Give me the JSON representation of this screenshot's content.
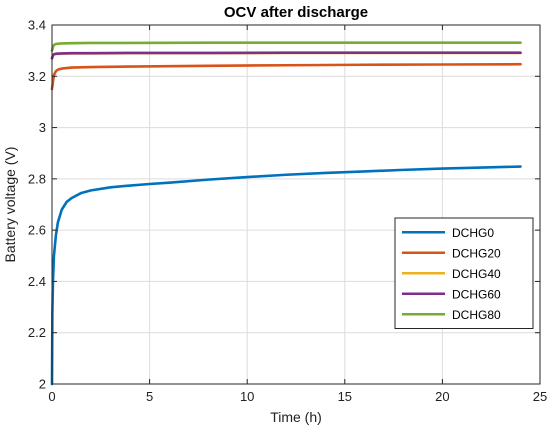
{
  "chart_data": {
    "type": "line",
    "title": "OCV after discharge",
    "xlabel": "Time (h)",
    "ylabel": "Battery voltage (V)",
    "xlim": [
      0,
      25
    ],
    "ylim": [
      2,
      3.4
    ],
    "xticks": [
      0,
      5,
      10,
      15,
      20,
      25
    ],
    "yticks": [
      2,
      2.2,
      2.4,
      2.6,
      2.8,
      3,
      3.2,
      3.4
    ],
    "xtick_labels": [
      "0",
      "5",
      "10",
      "15",
      "20",
      "25"
    ],
    "ytick_labels": [
      "2",
      "2.2",
      "2.4",
      "2.6",
      "2.8",
      "3",
      "3.2",
      "3.4"
    ],
    "grid": true,
    "legend_position": "center-right",
    "series": [
      {
        "name": "DCHG0",
        "color": "#0072BD",
        "x": [
          0,
          0.02,
          0.05,
          0.1,
          0.2,
          0.3,
          0.5,
          0.75,
          1,
          1.5,
          2,
          3,
          4,
          5,
          6,
          8,
          10,
          12,
          14,
          16,
          18,
          20,
          22,
          24
        ],
        "y": [
          2.0,
          2.28,
          2.4,
          2.5,
          2.58,
          2.63,
          2.68,
          2.71,
          2.725,
          2.745,
          2.755,
          2.767,
          2.774,
          2.78,
          2.785,
          2.797,
          2.807,
          2.816,
          2.823,
          2.829,
          2.835,
          2.84,
          2.844,
          2.848
        ]
      },
      {
        "name": "DCHG20",
        "color": "#D95319",
        "x": [
          0,
          0.05,
          0.1,
          0.2,
          0.3,
          0.5,
          1,
          2,
          4,
          8,
          12,
          16,
          20,
          24
        ],
        "y": [
          3.15,
          3.18,
          3.205,
          3.22,
          3.226,
          3.23,
          3.234,
          3.236,
          3.238,
          3.241,
          3.243,
          3.245,
          3.246,
          3.247
        ]
      },
      {
        "name": "DCHG40",
        "color": "#EDB120",
        "x": [
          0,
          0.05,
          0.1,
          0.2,
          0.5,
          1,
          2,
          4,
          8,
          12,
          16,
          20,
          24
        ],
        "y": [
          3.27,
          3.28,
          3.285,
          3.287,
          3.288,
          3.289,
          3.289,
          3.29,
          3.29,
          3.291,
          3.291,
          3.291,
          3.291
        ]
      },
      {
        "name": "DCHG60",
        "color": "#7E2F8E",
        "x": [
          0,
          0.05,
          0.1,
          0.2,
          0.5,
          1,
          2,
          4,
          8,
          12,
          16,
          20,
          24
        ],
        "y": [
          3.27,
          3.282,
          3.286,
          3.288,
          3.289,
          3.29,
          3.29,
          3.291,
          3.291,
          3.292,
          3.292,
          3.292,
          3.292
        ]
      },
      {
        "name": "DCHG80",
        "color": "#77AC30",
        "x": [
          0,
          0.05,
          0.1,
          0.2,
          0.5,
          1,
          2,
          4,
          8,
          12,
          16,
          20,
          24
        ],
        "y": [
          3.3,
          3.315,
          3.322,
          3.326,
          3.328,
          3.329,
          3.33,
          3.33,
          3.331,
          3.331,
          3.331,
          3.331,
          3.331
        ]
      }
    ]
  }
}
